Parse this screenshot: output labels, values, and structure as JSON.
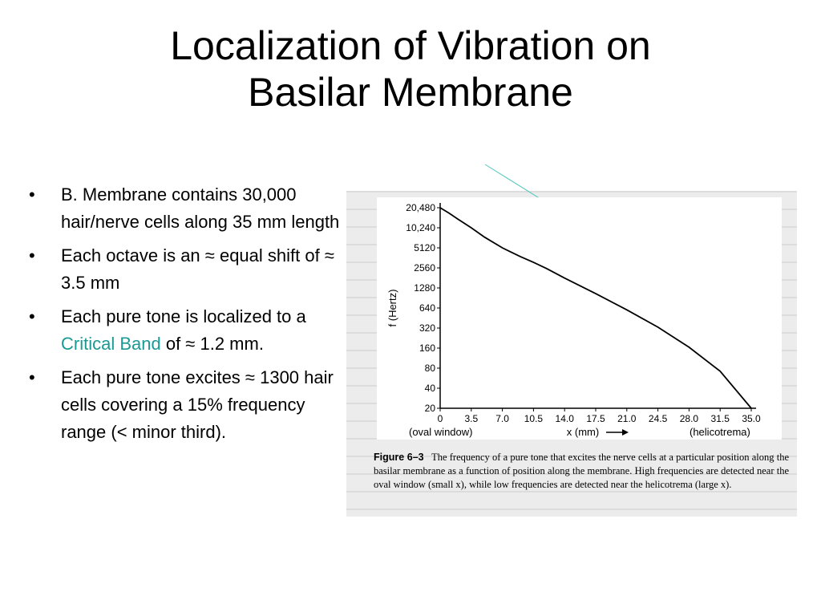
{
  "slide": {
    "title_line1": "Localization of Vibration on",
    "title_line2": "Basilar Membrane",
    "bullets": [
      {
        "text": "B. Membrane contains 30,000 hair/nerve cells along 35 mm length"
      },
      {
        "text": "Each octave is an ≈ equal shift of ≈ 3.5 mm"
      },
      {
        "pre": "Each pure tone is localized to a ",
        "link": "Critical Band",
        "post": " of ≈ 1.2 mm."
      },
      {
        "text": "Each pure tone excites ≈ 1300 hair cells covering a 15% frequency range (< minor third)."
      }
    ],
    "bullet_symbol": "•",
    "accent_color": "#1a9a92"
  },
  "figure": {
    "caption_label": "Figure 6–3",
    "caption_text": "The frequency of a pure tone that excites the nerve cells at a particular position along the basilar membrane as a function of position along the membrane. High frequencies are detected near the oval window (small x), while low frequencies are detected near the helicotrema (large x)."
  },
  "chart_data": {
    "type": "line",
    "title": "",
    "xlabel": "x (mm)",
    "ylabel": "f (Hertz)",
    "x_left_note": "(oval window)",
    "x_right_note": "(helicotrema)",
    "x_ticks": [
      "0",
      "3.5",
      "7.0",
      "10.5",
      "14.0",
      "17.5",
      "21.0",
      "24.5",
      "28.0",
      "31.5",
      "35.0"
    ],
    "y_ticks": [
      "20,480",
      "10,240",
      "5120",
      "2560",
      "1280",
      "640",
      "320",
      "160",
      "80",
      "40",
      "20"
    ],
    "xlim": [
      0,
      35
    ],
    "ylim": [
      20,
      20480
    ],
    "y_scale": "log2",
    "series": [
      {
        "x": [
          0,
          1,
          2,
          3.5,
          5,
          7,
          9,
          10.5,
          12,
          14,
          17.5,
          21,
          24.5,
          28,
          31.5,
          35
        ],
        "y": [
          20480,
          17000,
          13800,
          10240,
          7400,
          5120,
          3800,
          3100,
          2500,
          1800,
          1050,
          600,
          330,
          165,
          72,
          20
        ]
      }
    ],
    "grid": false
  }
}
